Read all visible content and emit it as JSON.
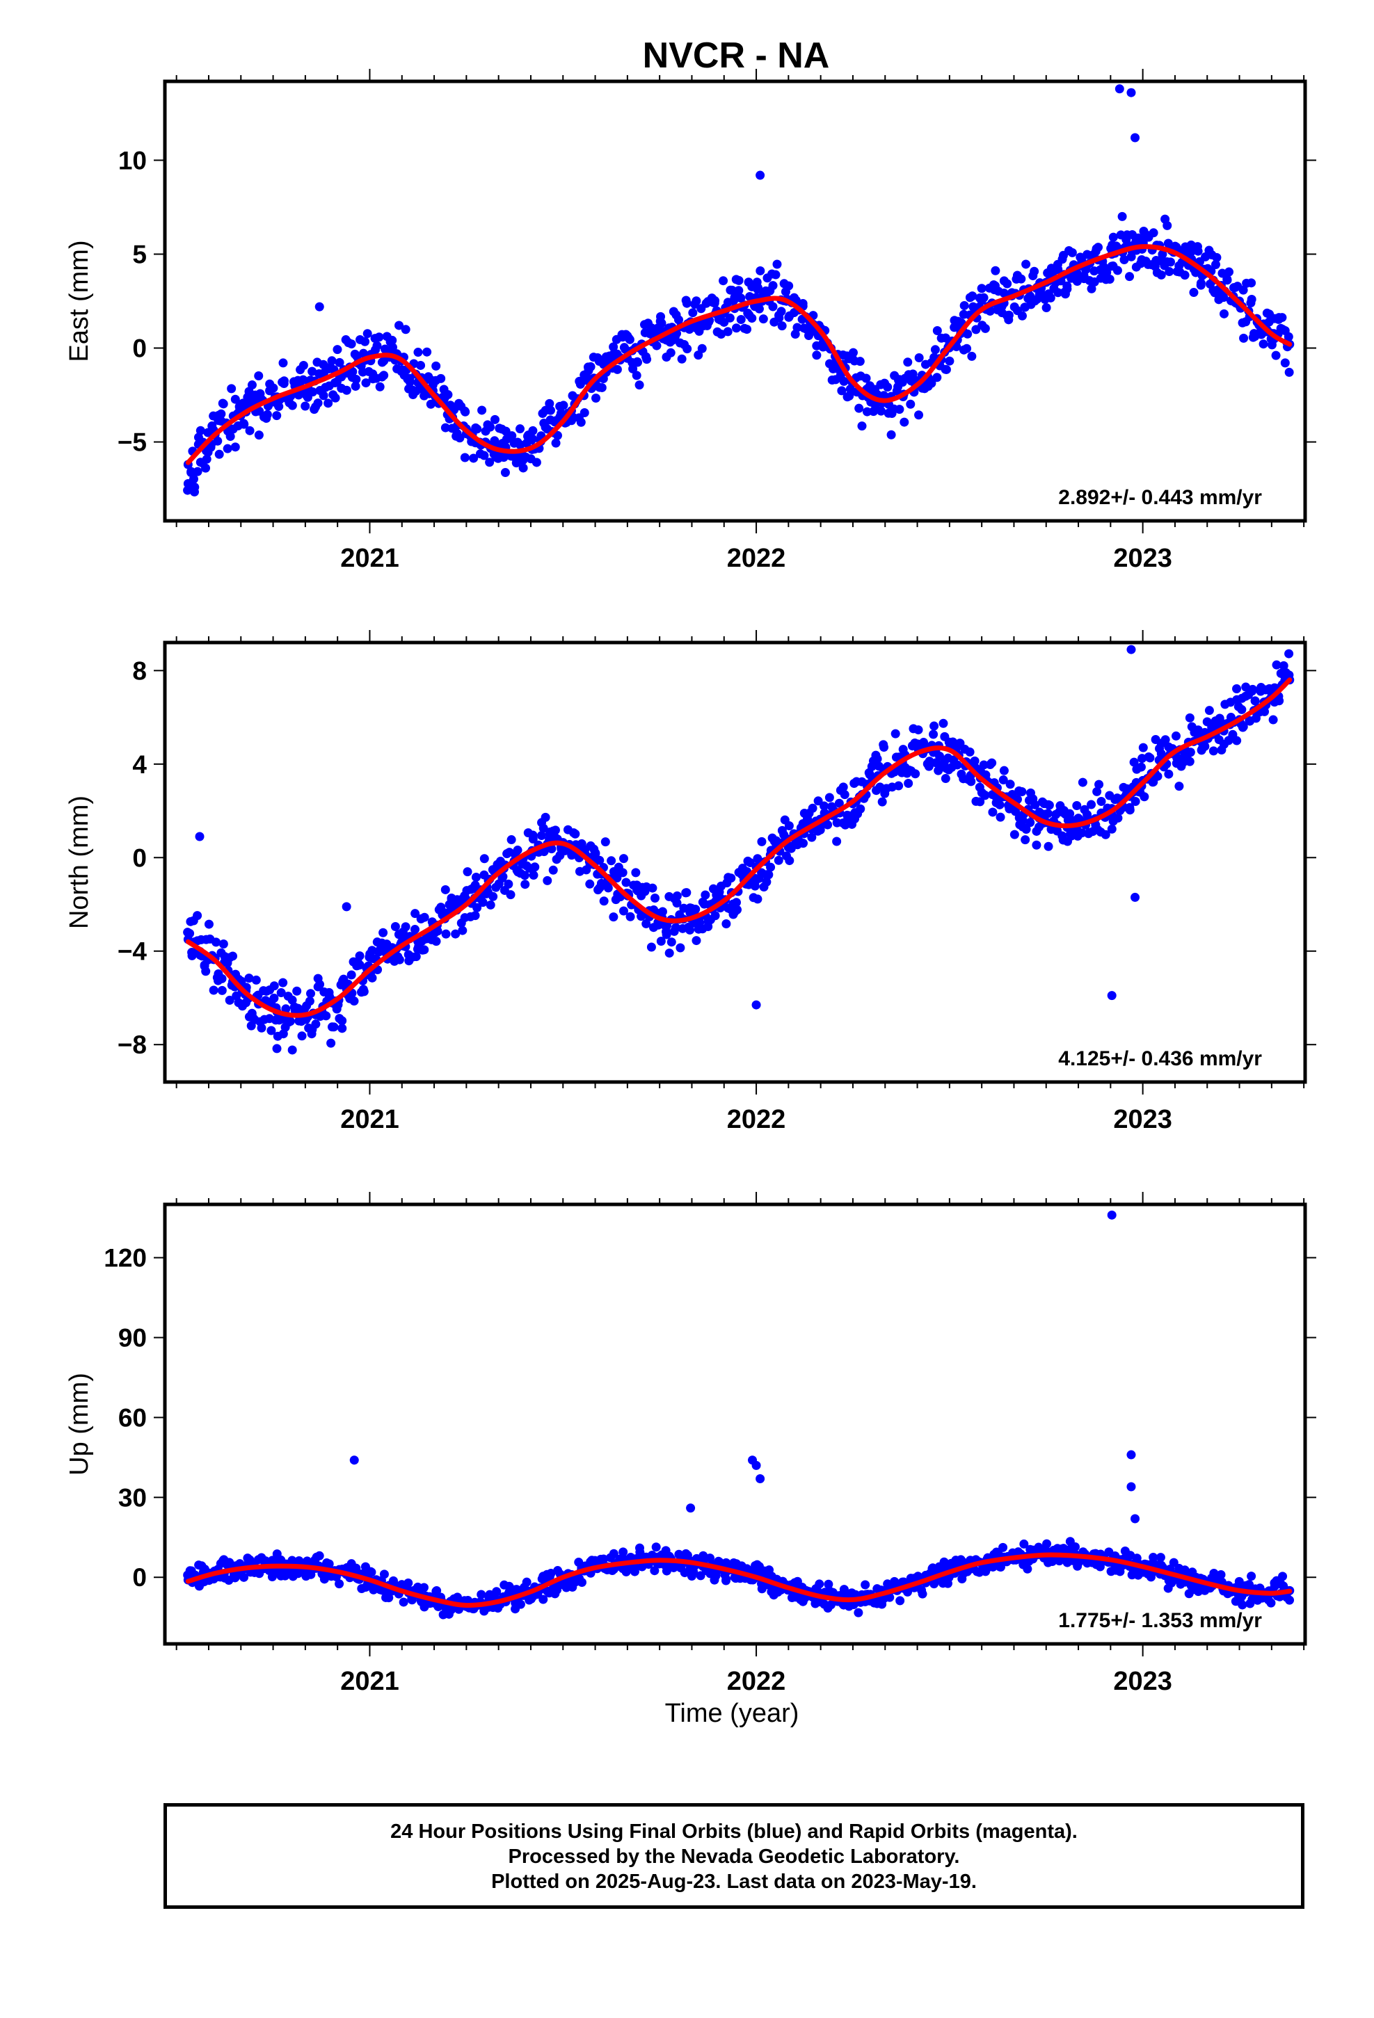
{
  "title": "NVCR - NA",
  "xlabel": "Time (year)",
  "colors": {
    "points": "#0000ff",
    "fit": "#ff0000",
    "frame": "#000000"
  },
  "caption": {
    "line1": "24 Hour Positions Using Final Orbits (blue) and Rapid Orbits (magenta).",
    "line2": "Processed by the Nevada Geodetic Laboratory.",
    "line3": "Plotted on 2025-Aug-23. Last data on 2023-May-19."
  },
  "chart_data": [
    {
      "type": "scatter",
      "component": "east",
      "ylabel": "East (mm)",
      "xlim": [
        2020.47,
        2023.42
      ],
      "ylim": [
        -9.2,
        14.2
      ],
      "xticks": [
        2021,
        2022,
        2023
      ],
      "xtick_labels": [
        "2021",
        "2022",
        "2023"
      ],
      "yticks": [
        -5,
        0,
        5,
        10
      ],
      "ytick_labels": [
        "−5",
        "0",
        "5",
        "10"
      ],
      "rate_label": "2.892+/- 0.443 mm/yr",
      "series": [
        {
          "style": "dots",
          "x": [
            2020.53,
            2020.6,
            2020.68,
            2020.76,
            2020.84,
            2020.92,
            2021.0,
            2021.08,
            2021.17,
            2021.25,
            2021.33,
            2021.42,
            2021.5,
            2021.58,
            2021.67,
            2021.75,
            2021.83,
            2021.92,
            2022.0,
            2022.08,
            2022.17,
            2022.25,
            2022.33,
            2022.42,
            2022.5,
            2022.58,
            2022.67,
            2022.75,
            2022.83,
            2022.92,
            2023.0,
            2023.08,
            2023.17,
            2023.25,
            2023.33,
            2023.38
          ],
          "y": [
            -6.2,
            -4.6,
            -3.4,
            -2.6,
            -2.1,
            -1.4,
            -0.4,
            -0.5,
            -2.6,
            -4.3,
            -5.3,
            -5.4,
            -3.9,
            -1.6,
            -0.2,
            0.6,
            1.4,
            2.0,
            2.7,
            2.6,
            0.7,
            -1.8,
            -2.8,
            -1.9,
            0.2,
            2.1,
            2.9,
            3.5,
            4.3,
            5.0,
            5.4,
            5.2,
            4.0,
            2.5,
            0.8,
            0.2
          ]
        },
        {
          "style": "outliers",
          "x": [
            2020.87,
            2022.01,
            2022.94,
            2022.97,
            2022.98
          ],
          "y": [
            2.2,
            9.2,
            13.8,
            13.6,
            11.2
          ]
        },
        {
          "style": "fit",
          "x": [
            2020.53,
            2020.6,
            2020.68,
            2020.76,
            2020.84,
            2020.92,
            2021.0,
            2021.08,
            2021.17,
            2021.25,
            2021.33,
            2021.42,
            2021.5,
            2021.58,
            2021.67,
            2021.75,
            2021.83,
            2021.92,
            2022.0,
            2022.08,
            2022.17,
            2022.25,
            2022.33,
            2022.42,
            2022.5,
            2022.58,
            2022.67,
            2022.75,
            2022.83,
            2022.92,
            2023.0,
            2023.08,
            2023.17,
            2023.25,
            2023.33,
            2023.38
          ],
          "y": [
            -6.1,
            -4.6,
            -3.4,
            -2.6,
            -2.0,
            -1.3,
            -0.5,
            -0.6,
            -2.6,
            -4.4,
            -5.4,
            -5.3,
            -3.9,
            -1.7,
            -0.3,
            0.6,
            1.4,
            2.0,
            2.5,
            2.5,
            0.8,
            -1.8,
            -2.8,
            -1.9,
            0.1,
            2.0,
            2.8,
            3.5,
            4.3,
            5.0,
            5.4,
            5.1,
            3.9,
            2.4,
            0.8,
            0.2
          ]
        }
      ]
    },
    {
      "type": "scatter",
      "component": "north",
      "ylabel": "North (mm)",
      "xlim": [
        2020.47,
        2023.42
      ],
      "ylim": [
        -9.6,
        9.2
      ],
      "xticks": [
        2021,
        2022,
        2023
      ],
      "xtick_labels": [
        "2021",
        "2022",
        "2023"
      ],
      "yticks": [
        -8,
        -4,
        0,
        4,
        8
      ],
      "ytick_labels": [
        "−8",
        "−4",
        "0",
        "4",
        "8"
      ],
      "rate_label": "4.125+/- 0.436 mm/yr",
      "series": [
        {
          "style": "dots",
          "x": [
            2020.53,
            2020.6,
            2020.68,
            2020.76,
            2020.84,
            2020.92,
            2021.0,
            2021.08,
            2021.17,
            2021.25,
            2021.33,
            2021.42,
            2021.5,
            2021.58,
            2021.67,
            2021.75,
            2021.83,
            2021.92,
            2022.0,
            2022.08,
            2022.17,
            2022.25,
            2022.33,
            2022.42,
            2022.5,
            2022.58,
            2022.67,
            2022.75,
            2022.83,
            2022.92,
            2023.0,
            2023.08,
            2023.17,
            2023.25,
            2023.33,
            2023.38
          ],
          "y": [
            -3.5,
            -4.3,
            -5.7,
            -6.6,
            -6.8,
            -6.1,
            -4.7,
            -3.7,
            -2.9,
            -1.9,
            -0.6,
            0.3,
            0.6,
            -0.3,
            -1.6,
            -2.6,
            -2.6,
            -1.8,
            -0.4,
            0.8,
            1.6,
            2.3,
            3.7,
            4.6,
            4.7,
            3.4,
            2.3,
            1.5,
            1.4,
            2.1,
            3.3,
            4.6,
            5.3,
            5.9,
            6.8,
            7.6
          ]
        },
        {
          "style": "outliers",
          "x": [
            2020.56,
            2020.94,
            2022.0,
            2022.97,
            2022.92,
            2022.98
          ],
          "y": [
            0.9,
            -2.1,
            -6.3,
            8.9,
            -5.9,
            -1.7
          ]
        },
        {
          "style": "fit",
          "x": [
            2020.53,
            2020.6,
            2020.68,
            2020.76,
            2020.84,
            2020.92,
            2021.0,
            2021.08,
            2021.17,
            2021.25,
            2021.33,
            2021.42,
            2021.5,
            2021.58,
            2021.67,
            2021.75,
            2021.83,
            2021.92,
            2022.0,
            2022.08,
            2022.17,
            2022.25,
            2022.33,
            2022.42,
            2022.5,
            2022.58,
            2022.67,
            2022.75,
            2022.83,
            2022.92,
            2023.0,
            2023.08,
            2023.17,
            2023.25,
            2023.33,
            2023.38
          ],
          "y": [
            -3.6,
            -4.4,
            -5.8,
            -6.6,
            -6.7,
            -6.0,
            -4.8,
            -3.8,
            -2.9,
            -2.0,
            -0.7,
            0.3,
            0.6,
            -0.3,
            -1.7,
            -2.6,
            -2.6,
            -1.8,
            -0.5,
            0.7,
            1.6,
            2.4,
            3.6,
            4.5,
            4.6,
            3.4,
            2.3,
            1.5,
            1.4,
            2.0,
            3.2,
            4.5,
            5.2,
            5.9,
            6.8,
            7.6
          ]
        }
      ]
    },
    {
      "type": "scatter",
      "component": "up",
      "ylabel": "Up (mm)",
      "xlim": [
        2020.47,
        2023.42
      ],
      "ylim": [
        -25,
        140
      ],
      "xticks": [
        2021,
        2022,
        2023
      ],
      "xtick_labels": [
        "2021",
        "2022",
        "2023"
      ],
      "yticks": [
        0,
        30,
        60,
        90,
        120
      ],
      "ytick_labels": [
        "0",
        "30",
        "60",
        "90",
        "120"
      ],
      "rate_label": "1.775+/- 1.353 mm/yr",
      "series": [
        {
          "style": "dots",
          "x": [
            2020.53,
            2020.6,
            2020.68,
            2020.76,
            2020.84,
            2020.92,
            2021.0,
            2021.08,
            2021.17,
            2021.25,
            2021.33,
            2021.42,
            2021.5,
            2021.58,
            2021.67,
            2021.75,
            2021.83,
            2021.92,
            2022.0,
            2022.08,
            2022.17,
            2022.25,
            2022.33,
            2022.42,
            2022.5,
            2022.58,
            2022.67,
            2022.75,
            2022.83,
            2022.92,
            2023.0,
            2023.08,
            2023.17,
            2023.25,
            2023.33,
            2023.38
          ],
          "y": [
            -1,
            2,
            4,
            4.5,
            4,
            2,
            -1,
            -5,
            -8.5,
            -10.5,
            -9,
            -5,
            0,
            3.5,
            5.5,
            6.5,
            5.5,
            3,
            0,
            -4,
            -7.5,
            -8.5,
            -6,
            -2,
            2,
            5.5,
            7.5,
            8.5,
            8,
            6.5,
            4,
            1,
            -2.5,
            -5,
            -6,
            -5
          ]
        },
        {
          "style": "outliers",
          "x": [
            2020.96,
            2021.83,
            2021.99,
            2022.0,
            2022.01,
            2022.92,
            2022.97,
            2022.97,
            2022.98
          ],
          "y": [
            44,
            26,
            44,
            42,
            37,
            136,
            46,
            34,
            22
          ]
        },
        {
          "style": "fit",
          "x": [
            2020.53,
            2020.6,
            2020.68,
            2020.76,
            2020.84,
            2020.92,
            2021.0,
            2021.08,
            2021.17,
            2021.25,
            2021.33,
            2021.42,
            2021.5,
            2021.58,
            2021.67,
            2021.75,
            2021.83,
            2021.92,
            2022.0,
            2022.08,
            2022.17,
            2022.25,
            2022.33,
            2022.42,
            2022.5,
            2022.58,
            2022.67,
            2022.75,
            2022.83,
            2022.92,
            2023.0,
            2023.08,
            2023.17,
            2023.25,
            2023.33,
            2023.38
          ],
          "y": [
            -1.5,
            1.5,
            3.5,
            4.2,
            3.8,
            2,
            -1,
            -5,
            -8.5,
            -10.5,
            -9.2,
            -5.2,
            0,
            3.5,
            5.5,
            6.4,
            5.6,
            3,
            0,
            -3.8,
            -7.3,
            -8.4,
            -6,
            -2,
            2,
            5.4,
            7.4,
            8.4,
            8.0,
            6.5,
            4.0,
            1.0,
            -2.4,
            -5.0,
            -6.0,
            -5.2
          ]
        }
      ]
    }
  ]
}
